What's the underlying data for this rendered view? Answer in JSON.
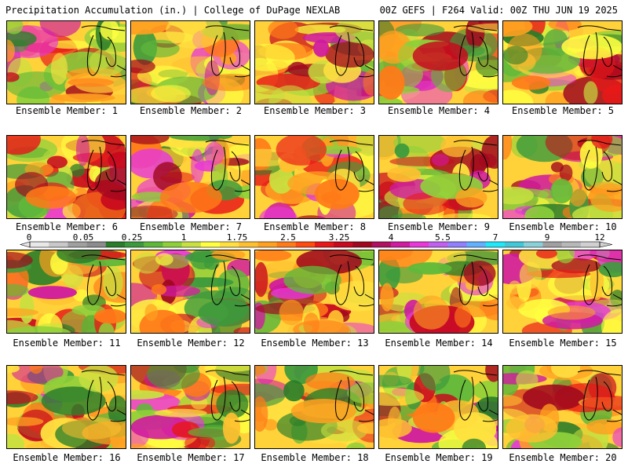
{
  "header": {
    "left": "Precipitation Accumulation (in.) | College of DuPage NEXLAB",
    "right": "00Z GEFS | F264 Valid: 00Z THU JUN 19 2025"
  },
  "members": [
    "Ensemble Member: 1",
    "Ensemble Member: 2",
    "Ensemble Member: 3",
    "Ensemble Member: 4",
    "Ensemble Member: 5",
    "Ensemble Member: 6",
    "Ensemble Member: 7",
    "Ensemble Member: 8",
    "Ensemble Member: 9",
    "Ensemble Member: 10",
    "Ensemble Member: 11",
    "Ensemble Member: 12",
    "Ensemble Member: 13",
    "Ensemble Member: 14",
    "Ensemble Member: 15",
    "Ensemble Member: 16",
    "Ensemble Member: 17",
    "Ensemble Member: 18",
    "Ensemble Member: 19",
    "Ensemble Member: 20"
  ],
  "colorbar": {
    "tick_labels": [
      "0",
      "0.05",
      "0.25",
      "1",
      "1.75",
      "2.5",
      "3.25",
      "4",
      "5.5",
      "7",
      "9",
      "12"
    ],
    "colors": [
      "#e8e8e8",
      "#c8c8c8",
      "#a0a0a0",
      "#8c8c8c",
      "#2a7d2a",
      "#3c9a3c",
      "#5fb83a",
      "#8ed03a",
      "#c8e040",
      "#ffff40",
      "#ffe040",
      "#ffc030",
      "#ffa020",
      "#ff7a18",
      "#ff4a10",
      "#e81818",
      "#c80a1e",
      "#a0081e",
      "#b01060",
      "#d01aa0",
      "#e838d8",
      "#c060f0",
      "#9080ff",
      "#60b0ff",
      "#20e8f8",
      "#40c8d8",
      "#8ad0d8",
      "#a0a0a0",
      "#b8b8b8",
      "#d0d0d0"
    ]
  }
}
